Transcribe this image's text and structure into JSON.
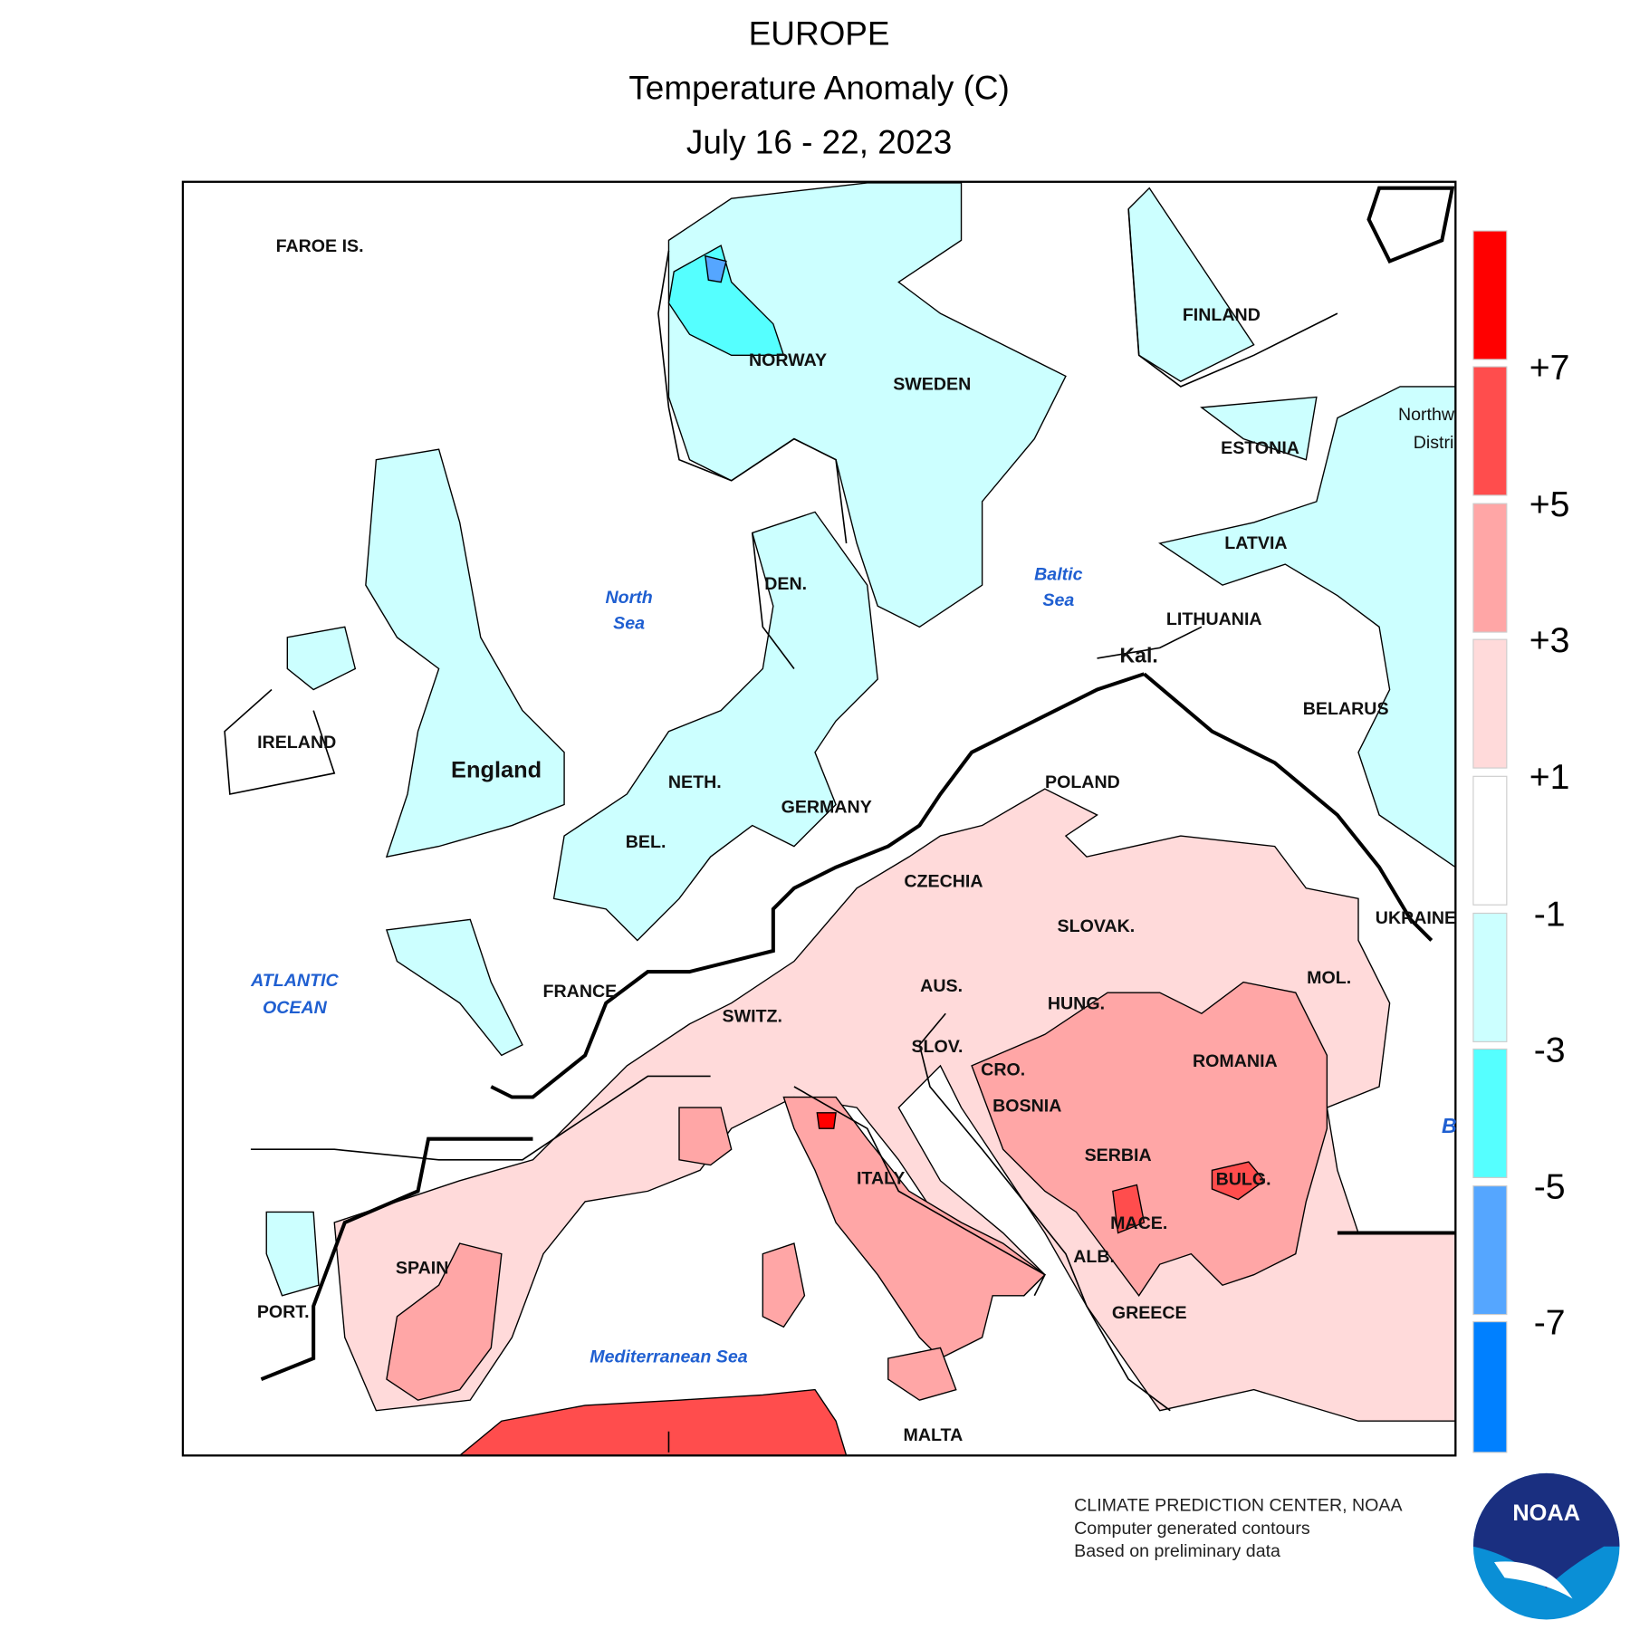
{
  "header": {
    "region": "EUROPE",
    "title": "Temperature Anomaly (C)",
    "period": "July 16 - 22, 2023"
  },
  "map": {
    "countries": [
      "FAROE IS.",
      "NORWAY",
      "SWEDEN",
      "FINLAND",
      "ESTONIA",
      "LATVIA",
      "LITHUANIA",
      "Kal.",
      "BELARUS",
      "Northw",
      "Distri",
      "IRELAND",
      "England",
      "NETH.",
      "GERMANY",
      "BEL.",
      "DEN.",
      "POLAND",
      "CZECHIA",
      "SLOVAK.",
      "UKRAINE",
      "FRANCE",
      "AUS.",
      "HUNG.",
      "MOL.",
      "SWITZ.",
      "SLOV.",
      "ROMANIA",
      "CRO.",
      "BOSNIA",
      "SERBIA",
      "ITALY",
      "BULG.",
      "MACE.",
      "ALB.",
      "SPAIN",
      "PORT.",
      "GREECE",
      "MALTA"
    ],
    "seas": [
      "North",
      "Sea",
      "Baltic",
      "Sea",
      "ATLANTIC",
      "OCEAN",
      "Mediterranean Sea",
      "B"
    ]
  },
  "legend": {
    "labels": [
      "+7",
      "+5",
      "+3",
      "+1",
      "-1",
      "-3",
      "-5",
      "-7"
    ]
  },
  "credits": {
    "lines": [
      "CLIMATE PREDICTION CENTER, NOAA",
      "Computer generated contours",
      "Based on preliminary data"
    ]
  },
  "logo": "NOAA"
}
